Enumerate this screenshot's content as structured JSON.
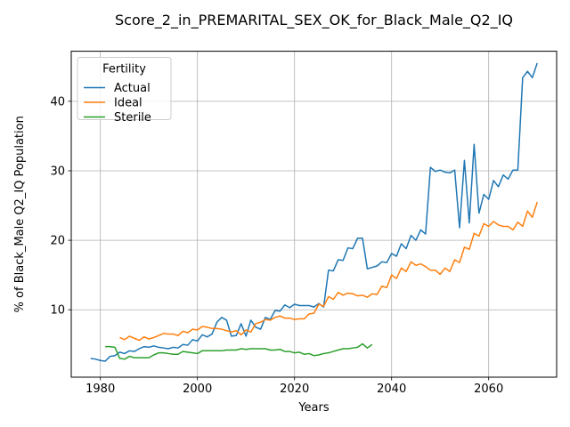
{
  "chart_data": {
    "type": "line",
    "title": "Score_2_in_PREMARITAL_SEX_OK_for_Black_Male_Q2_IQ",
    "xlabel": "Years",
    "ylabel": "% of Black_Male Q2_IQ Population",
    "xlim": [
      1974,
      2074
    ],
    "ylim": [
      0.3,
      47.2
    ],
    "xticks": [
      1980,
      2000,
      2020,
      2040,
      2060
    ],
    "yticks": [
      10,
      20,
      30,
      40
    ],
    "grid": true,
    "legend": {
      "title": "Fertility",
      "position": "top-left"
    },
    "series": [
      {
        "name": "Actual",
        "color": "#1f77b4",
        "x": [
          1978,
          1979,
          1980,
          1981,
          1982,
          1983,
          1984,
          1985,
          1986,
          1987,
          1988,
          1989,
          1990,
          1991,
          1992,
          1993,
          1994,
          1995,
          1996,
          1997,
          1998,
          1999,
          2000,
          2001,
          2002,
          2003,
          2004,
          2005,
          2006,
          2007,
          2008,
          2009,
          2010,
          2011,
          2012,
          2013,
          2014,
          2015,
          2016,
          2017,
          2018,
          2019,
          2020,
          2021,
          2022,
          2023,
          2024,
          2025,
          2026,
          2027,
          2028,
          2029,
          2030,
          2031,
          2032,
          2033,
          2034,
          2035,
          2036,
          2037,
          2038,
          2039,
          2040,
          2041,
          2042,
          2043,
          2044,
          2045,
          2046,
          2047,
          2048,
          2049,
          2050,
          2051,
          2052,
          2053,
          2054,
          2055,
          2056,
          2057,
          2058,
          2059,
          2060,
          2061,
          2062,
          2063,
          2064,
          2065,
          2066,
          2067,
          2068,
          2069,
          2070
        ],
        "y": [
          3.0,
          2.9,
          2.7,
          2.6,
          3.3,
          3.4,
          3.9,
          3.7,
          4.1,
          4.0,
          4.4,
          4.7,
          4.6,
          4.8,
          4.6,
          4.5,
          4.4,
          4.6,
          4.5,
          5.0,
          4.9,
          5.7,
          5.5,
          6.4,
          6.1,
          6.5,
          8.2,
          8.9,
          8.5,
          6.2,
          6.3,
          8.0,
          6.2,
          8.5,
          7.5,
          7.2,
          8.9,
          8.6,
          9.9,
          9.8,
          10.7,
          10.3,
          10.8,
          10.6,
          10.6,
          10.6,
          10.4,
          10.9,
          10.4,
          15.7,
          15.6,
          17.2,
          17.1,
          18.9,
          18.8,
          20.3,
          20.3,
          15.9,
          16.1,
          16.3,
          16.9,
          16.8,
          18.1,
          17.7,
          19.5,
          18.8,
          20.7,
          20.0,
          21.5,
          20.9,
          30.5,
          29.9,
          30.1,
          29.8,
          29.7,
          30.1,
          21.8,
          31.5,
          22.5,
          33.8,
          23.9,
          26.6,
          25.9,
          28.6,
          27.7,
          29.4,
          28.8,
          30.1,
          30.1,
          43.4,
          44.3,
          43.4,
          45.5
        ]
      },
      {
        "name": "Ideal",
        "color": "#ff7f0e",
        "x": [
          1984,
          1985,
          1986,
          1987,
          1988,
          1989,
          1990,
          1991,
          1992,
          1993,
          1994,
          1995,
          1996,
          1997,
          1998,
          1999,
          2000,
          2001,
          2002,
          2003,
          2004,
          2005,
          2006,
          2007,
          2008,
          2009,
          2010,
          2011,
          2012,
          2013,
          2014,
          2015,
          2016,
          2017,
          2018,
          2019,
          2020,
          2021,
          2022,
          2023,
          2024,
          2025,
          2026,
          2027,
          2028,
          2029,
          2030,
          2031,
          2032,
          2033,
          2034,
          2035,
          2036,
          2037,
          2038,
          2039,
          2040,
          2041,
          2042,
          2043,
          2044,
          2045,
          2046,
          2047,
          2048,
          2049,
          2050,
          2051,
          2052,
          2053,
          2054,
          2055,
          2056,
          2057,
          2058,
          2059,
          2060,
          2061,
          2062,
          2063,
          2064,
          2065,
          2066,
          2067,
          2068,
          2069,
          2070
        ],
        "y": [
          6.0,
          5.7,
          6.2,
          5.9,
          5.6,
          6.1,
          5.8,
          6.0,
          6.3,
          6.6,
          6.5,
          6.5,
          6.3,
          6.9,
          6.7,
          7.2,
          7.1,
          7.6,
          7.5,
          7.3,
          7.3,
          7.2,
          7.0,
          6.8,
          7.0,
          6.4,
          7.1,
          6.8,
          8.0,
          8.2,
          8.6,
          8.5,
          8.9,
          9.1,
          8.8,
          8.8,
          8.6,
          8.7,
          8.7,
          9.4,
          9.5,
          10.8,
          10.5,
          11.9,
          11.5,
          12.5,
          12.1,
          12.4,
          12.3,
          12.0,
          12.1,
          11.8,
          12.3,
          12.2,
          13.4,
          13.2,
          15.0,
          14.5,
          16.0,
          15.5,
          16.9,
          16.4,
          16.6,
          16.2,
          15.7,
          15.7,
          15.1,
          16.0,
          15.5,
          17.2,
          16.8,
          19.0,
          18.7,
          21.0,
          20.6,
          22.4,
          22.0,
          22.7,
          22.2,
          22.0,
          22.0,
          21.5,
          22.6,
          22.0,
          24.2,
          23.3,
          25.5
        ]
      },
      {
        "name": "Sterile",
        "color": "#2ca02c",
        "x": [
          1981,
          1982,
          1983,
          1984,
          1985,
          1986,
          1987,
          1988,
          1989,
          1990,
          1991,
          1992,
          1993,
          1994,
          1995,
          1996,
          1997,
          1998,
          1999,
          2000,
          2001,
          2002,
          2003,
          2004,
          2005,
          2006,
          2007,
          2008,
          2009,
          2010,
          2011,
          2012,
          2013,
          2014,
          2015,
          2016,
          2017,
          2018,
          2019,
          2020,
          2021,
          2022,
          2023,
          2024,
          2025,
          2026,
          2027,
          2028,
          2029,
          2030,
          2031,
          2032,
          2033,
          2034,
          2035,
          2036
        ],
        "y": [
          4.7,
          4.7,
          4.6,
          3.0,
          2.9,
          3.3,
          3.1,
          3.1,
          3.1,
          3.1,
          3.5,
          3.8,
          3.8,
          3.7,
          3.6,
          3.6,
          4.0,
          3.9,
          3.8,
          3.7,
          4.1,
          4.1,
          4.1,
          4.1,
          4.1,
          4.2,
          4.2,
          4.2,
          4.4,
          4.3,
          4.4,
          4.4,
          4.4,
          4.4,
          4.2,
          4.2,
          4.3,
          4.0,
          4.0,
          3.8,
          3.9,
          3.6,
          3.7,
          3.4,
          3.5,
          3.7,
          3.8,
          4.0,
          4.2,
          4.4,
          4.4,
          4.5,
          4.6,
          5.1,
          4.5,
          5.0
        ]
      }
    ]
  }
}
